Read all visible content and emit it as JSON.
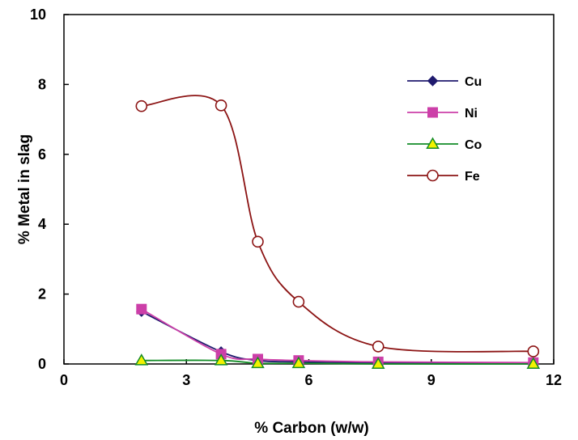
{
  "chart_data": {
    "type": "line",
    "xlabel": "% Carbon (w/w)",
    "ylabel": "% Metal in slag",
    "xlim": [
      0,
      12
    ],
    "ylim": [
      0,
      10
    ],
    "xticks": [
      0,
      3,
      6,
      9,
      12
    ],
    "yticks": [
      0,
      2,
      4,
      6,
      8,
      10
    ],
    "grid": false,
    "legend": "top-right",
    "series": [
      {
        "name": "Cu",
        "marker": "diamond",
        "color": "#1f1a6e",
        "x": [
          1.9,
          3.85,
          4.75,
          5.75,
          7.7,
          11.5
        ],
        "y": [
          1.5,
          0.35,
          0.1,
          0.06,
          0.03,
          0.02
        ]
      },
      {
        "name": "Ni",
        "marker": "square",
        "color": "#cc3fa8",
        "x": [
          1.9,
          3.85,
          4.75,
          5.75,
          7.7,
          11.5
        ],
        "y": [
          1.57,
          0.28,
          0.14,
          0.1,
          0.06,
          0.04
        ]
      },
      {
        "name": "Co",
        "marker": "triangle",
        "color": "#138c27",
        "x": [
          1.9,
          3.85,
          4.75,
          5.75,
          7.7,
          11.5
        ],
        "y": [
          0.1,
          0.1,
          0.02,
          0.02,
          0.0,
          0.0
        ]
      },
      {
        "name": "Fe",
        "marker": "circle",
        "color": "#8c1414",
        "x": [
          1.9,
          3.85,
          4.75,
          5.75,
          7.7,
          11.5
        ],
        "y": [
          7.38,
          7.4,
          3.5,
          1.78,
          0.5,
          0.36
        ]
      }
    ]
  }
}
